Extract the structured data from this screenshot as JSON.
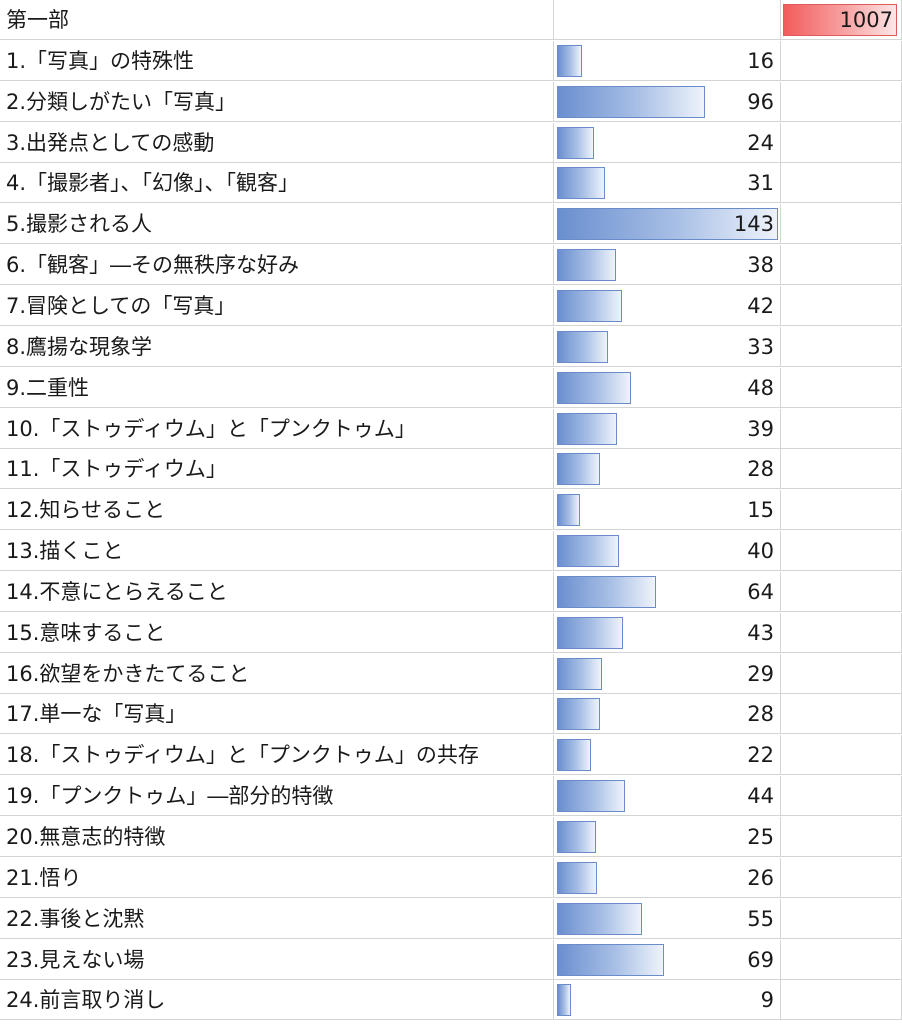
{
  "chart_data": {
    "type": "bar",
    "orientation": "horizontal",
    "header": "第一部",
    "total": 1007,
    "bar_color": "#6a8fcf",
    "total_color": "#f25c5c",
    "xlim": [
      0,
      143
    ],
    "categories": [
      "1.「写真」の特殊性",
      "2.分類しがたい「写真」",
      "3.出発点としての感動",
      "4.「撮影者」、「幻像」、「観客」",
      "5.撮影される人",
      "6.「観客」―その無秩序な好み",
      "7.冒険としての「写真」",
      "8.鷹揚な現象学",
      "9.二重性",
      "10.「ストゥディウム」と「プンクトゥム」",
      "11.「ストゥディウム」",
      "12.知らせること",
      "13.描くこと",
      "14.不意にとらえること",
      "15.意味すること",
      "16.欲望をかきたてること",
      "17.単一な「写真」",
      "18.「ストゥディウム」と「プンクトゥム」の共存",
      "19.「プンクトゥム」―部分的特徴",
      "20.無意志的特徴",
      "21.悟り",
      "22.事後と沈黙",
      "23.見えない場",
      "24.前言取り消し"
    ],
    "values": [
      16,
      96,
      24,
      31,
      143,
      38,
      42,
      33,
      48,
      39,
      28,
      15,
      40,
      64,
      43,
      29,
      28,
      22,
      44,
      25,
      26,
      55,
      69,
      9
    ]
  }
}
